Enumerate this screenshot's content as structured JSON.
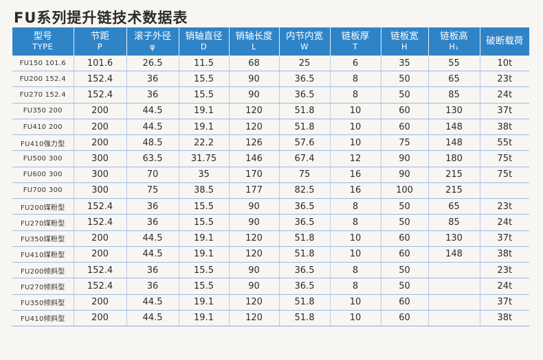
{
  "title": "FU系列提升链技术数据表",
  "headers": [
    {
      "cn": "型号",
      "en": "TYPE"
    },
    {
      "cn": "节距",
      "en": "P"
    },
    {
      "cn": "滚子外径",
      "en": "φ"
    },
    {
      "cn": "销轴直径",
      "en": "D"
    },
    {
      "cn": "销轴长度",
      "en": "L"
    },
    {
      "cn": "内节内宽",
      "en": "W"
    },
    {
      "cn": "链板厚",
      "en": "T"
    },
    {
      "cn": "链板宽",
      "en": "H"
    },
    {
      "cn": "链板高",
      "en": "H₁"
    },
    {
      "cn": "破断载荷",
      "en": ""
    }
  ],
  "rows": [
    [
      "FU150 101.6",
      "101.6",
      "26.5",
      "11.5",
      "68",
      "25",
      "6",
      "35",
      "55",
      "10t"
    ],
    [
      "FU200 152.4",
      "152.4",
      "36",
      "15.5",
      "90",
      "36.5",
      "8",
      "50",
      "65",
      "23t"
    ],
    [
      "FU270 152.4",
      "152.4",
      "36",
      "15.5",
      "90",
      "36.5",
      "8",
      "50",
      "85",
      "24t"
    ],
    [
      "FU350 200",
      "200",
      "44.5",
      "19.1",
      "120",
      "51.8",
      "10",
      "60",
      "130",
      "37t"
    ],
    [
      "FU410 200",
      "200",
      "44.5",
      "19.1",
      "120",
      "51.8",
      "10",
      "60",
      "148",
      "38t"
    ],
    [
      "FU410强力型",
      "200",
      "48.5",
      "22.2",
      "126",
      "57.6",
      "10",
      "75",
      "148",
      "55t"
    ],
    [
      "FU500 300",
      "300",
      "63.5",
      "31.75",
      "146",
      "67.4",
      "12",
      "90",
      "180",
      "75t"
    ],
    [
      "FU600 300",
      "300",
      "70",
      "35",
      "170",
      "75",
      "16",
      "90",
      "215",
      "75t"
    ],
    [
      "FU700 300",
      "300",
      "75",
      "38.5",
      "177",
      "82.5",
      "16",
      "100",
      "215",
      ""
    ],
    [
      "FU200煤粉型",
      "152.4",
      "36",
      "15.5",
      "90",
      "36.5",
      "8",
      "50",
      "65",
      "23t"
    ],
    [
      "FU270煤粉型",
      "152.4",
      "36",
      "15.5",
      "90",
      "36.5",
      "8",
      "50",
      "85",
      "24t"
    ],
    [
      "FU350煤粉型",
      "200",
      "44.5",
      "19.1",
      "120",
      "51.8",
      "10",
      "60",
      "130",
      "37t"
    ],
    [
      "FU410煤粉型",
      "200",
      "44.5",
      "19.1",
      "120",
      "51.8",
      "10",
      "60",
      "148",
      "38t"
    ],
    [
      "FU200倾斜型",
      "152.4",
      "36",
      "15.5",
      "90",
      "36.5",
      "8",
      "50",
      "",
      "23t"
    ],
    [
      "FU270倾斜型",
      "152.4",
      "36",
      "15.5",
      "90",
      "36.5",
      "8",
      "50",
      "",
      "24t"
    ],
    [
      "FU350倾斜型",
      "200",
      "44.5",
      "19.1",
      "120",
      "51.8",
      "10",
      "60",
      "",
      "37t"
    ],
    [
      "FU410倾斜型",
      "200",
      "44.5",
      "19.1",
      "120",
      "51.8",
      "10",
      "60",
      "",
      "38t"
    ]
  ]
}
